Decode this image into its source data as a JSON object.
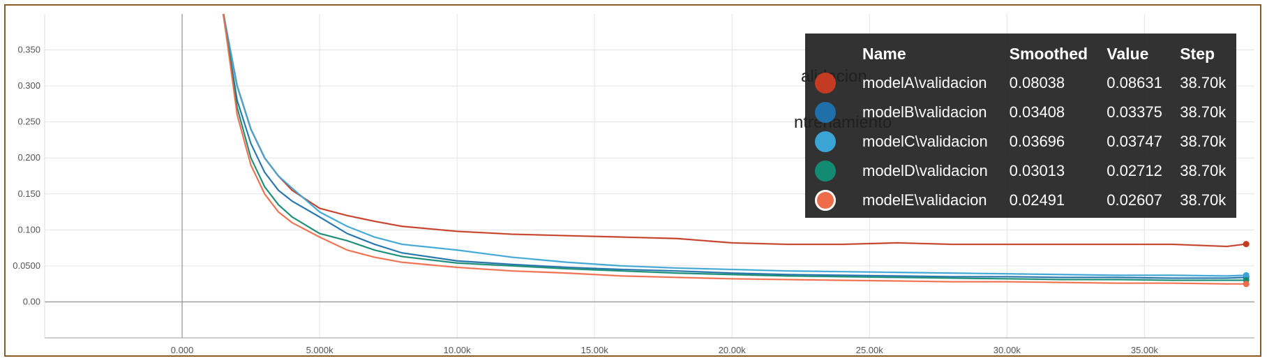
{
  "chart_data": {
    "type": "line",
    "title": "",
    "xlabel": "",
    "ylabel": "",
    "xlim": [
      -5000,
      39000
    ],
    "ylim": [
      -0.05,
      0.4
    ],
    "x_ticks": [
      0,
      5000,
      10000,
      15000,
      20000,
      25000,
      30000,
      35000
    ],
    "x_tick_labels": [
      "0.000",
      "5.000k",
      "10.00k",
      "15.00k",
      "20.00k",
      "25.00k",
      "30.00k",
      "35.00k"
    ],
    "y_ticks": [
      0,
      0.05,
      0.1,
      0.15,
      0.2,
      0.25,
      0.3,
      0.35
    ],
    "y_tick_labels": [
      "0.00",
      "0.0500",
      "0.100",
      "0.150",
      "0.200",
      "0.250",
      "0.300",
      "0.350"
    ],
    "grid": true,
    "series": [
      {
        "name": "modelA\\validacion",
        "color": "#c23b22",
        "x": [
          1500,
          2000,
          2500,
          3000,
          3500,
          4000,
          5000,
          6000,
          7000,
          8000,
          10000,
          12000,
          14000,
          16000,
          18000,
          20000,
          22000,
          24000,
          26000,
          28000,
          30000,
          32000,
          34000,
          36000,
          38000,
          38700
        ],
        "y": [
          0.4,
          0.3,
          0.24,
          0.2,
          0.175,
          0.155,
          0.13,
          0.12,
          0.112,
          0.105,
          0.098,
          0.094,
          0.092,
          0.09,
          0.088,
          0.082,
          0.08,
          0.08,
          0.082,
          0.08,
          0.08,
          0.08,
          0.08,
          0.08,
          0.077,
          0.08038
        ]
      },
      {
        "name": "modelB\\validacion",
        "color": "#1f6fa8",
        "x": [
          1500,
          2000,
          2500,
          3000,
          3500,
          4000,
          5000,
          6000,
          7000,
          8000,
          10000,
          12000,
          14000,
          16000,
          18000,
          20000,
          22000,
          24000,
          26000,
          28000,
          30000,
          32000,
          34000,
          36000,
          38000,
          38700
        ],
        "y": [
          0.4,
          0.28,
          0.22,
          0.18,
          0.155,
          0.14,
          0.118,
          0.095,
          0.08,
          0.068,
          0.057,
          0.052,
          0.048,
          0.045,
          0.043,
          0.04,
          0.038,
          0.037,
          0.036,
          0.035,
          0.035,
          0.034,
          0.034,
          0.033,
          0.033,
          0.03408
        ]
      },
      {
        "name": "modelC\\validacion",
        "color": "#3aa5d4",
        "x": [
          1500,
          2000,
          2500,
          3000,
          3500,
          4000,
          5000,
          6000,
          7000,
          8000,
          10000,
          12000,
          14000,
          16000,
          18000,
          20000,
          22000,
          24000,
          26000,
          28000,
          30000,
          32000,
          34000,
          36000,
          38000,
          38700
        ],
        "y": [
          0.4,
          0.3,
          0.24,
          0.2,
          0.175,
          0.158,
          0.125,
          0.105,
          0.09,
          0.08,
          0.072,
          0.062,
          0.055,
          0.05,
          0.047,
          0.045,
          0.043,
          0.042,
          0.041,
          0.04,
          0.039,
          0.038,
          0.037,
          0.037,
          0.036,
          0.03696
        ]
      },
      {
        "name": "modelD\\validacion",
        "color": "#138a72",
        "x": [
          1500,
          2000,
          2500,
          3000,
          3500,
          4000,
          5000,
          6000,
          7000,
          8000,
          10000,
          12000,
          14000,
          16000,
          18000,
          20000,
          22000,
          24000,
          26000,
          28000,
          30000,
          32000,
          34000,
          36000,
          38000,
          38700
        ],
        "y": [
          0.4,
          0.27,
          0.2,
          0.16,
          0.135,
          0.118,
          0.095,
          0.085,
          0.072,
          0.063,
          0.054,
          0.05,
          0.046,
          0.043,
          0.04,
          0.038,
          0.036,
          0.035,
          0.034,
          0.033,
          0.032,
          0.031,
          0.031,
          0.03,
          0.03,
          0.03013
        ]
      },
      {
        "name": "modelE\\validacion",
        "color": "#ef6c4a",
        "x": [
          1500,
          2000,
          2500,
          3000,
          3500,
          4000,
          5000,
          6000,
          7000,
          8000,
          10000,
          12000,
          14000,
          16000,
          18000,
          20000,
          22000,
          24000,
          26000,
          28000,
          30000,
          32000,
          34000,
          36000,
          38000,
          38700
        ],
        "y": [
          0.4,
          0.26,
          0.19,
          0.15,
          0.125,
          0.11,
          0.09,
          0.072,
          0.062,
          0.055,
          0.048,
          0.043,
          0.04,
          0.036,
          0.034,
          0.032,
          0.031,
          0.03,
          0.029,
          0.028,
          0.028,
          0.027,
          0.026,
          0.026,
          0.025,
          0.02491
        ]
      }
    ]
  },
  "tooltip": {
    "headers": {
      "name": "Name",
      "smoothed": "Smoothed",
      "value": "Value",
      "step": "Step"
    },
    "rows": [
      {
        "name": "modelA\\validacion",
        "smoothed": "0.08038",
        "value": "0.08631",
        "step": "38.70k",
        "color": "#c23b22"
      },
      {
        "name": "modelB\\validacion",
        "smoothed": "0.03408",
        "value": "0.03375",
        "step": "38.70k",
        "color": "#1f6fa8"
      },
      {
        "name": "modelC\\validacion",
        "smoothed": "0.03696",
        "value": "0.03747",
        "step": "38.70k",
        "color": "#3aa5d4"
      },
      {
        "name": "modelD\\validacion",
        "smoothed": "0.03013",
        "value": "0.02712",
        "step": "38.70k",
        "color": "#138a72"
      },
      {
        "name": "modelE\\validacion",
        "smoothed": "0.02491",
        "value": "0.02607",
        "step": "38.70k",
        "color": "#ef6c4a"
      }
    ]
  },
  "background_legend": {
    "item1": "alidacion",
    "item2": "ntrenamiento"
  }
}
